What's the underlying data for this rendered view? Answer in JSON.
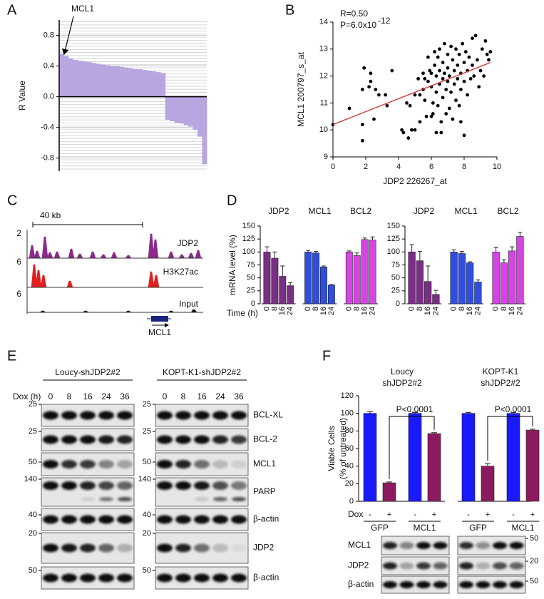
{
  "panel_labels": [
    "A",
    "B",
    "C",
    "D",
    "E",
    "F"
  ],
  "chart_data": [
    {
      "type": "waterfall",
      "y_label": "R Value",
      "annotation": "MCL1",
      "color": "#b7a6e0",
      "grid": true,
      "values": [
        0.56,
        0.53,
        0.5,
        0.48,
        0.47,
        0.46,
        0.45,
        0.44,
        0.43,
        0.42,
        0.41,
        0.4,
        0.4,
        0.39,
        0.38,
        0.37,
        0.36,
        0.36,
        0.35,
        0.34,
        0.33,
        0.32,
        0.31,
        -0.3,
        -0.32,
        -0.34,
        -0.35,
        -0.37,
        -0.39,
        -0.43,
        -0.52,
        -0.88
      ],
      "ylim": [
        -0.97,
        1.0
      ],
      "yticks": [
        0.8,
        0.4,
        {
          "value": 0,
          "label": "0.0"
        },
        -0.4,
        -0.8
      ]
    },
    {
      "type": "scatter",
      "x_label": "JDP2 226267_at",
      "y_label": "MCL1 200797_s_at",
      "annotations": [
        "R=0.50",
        "P=6.0x10",
        "-12"
      ],
      "color": "#000000",
      "x": [
        0,
        1.8,
        1.8,
        1.8,
        1.9,
        2.2,
        2.3,
        2.3,
        2.5,
        2.6,
        2.8,
        3.2,
        3.6,
        3.3,
        1.0,
        4.2,
        4.3,
        4.6,
        4.5,
        4.7,
        4.8,
        5.0,
        5.3,
        5.0,
        5.2,
        5.3,
        5.5,
        5.5,
        5.6,
        5.7,
        5.8,
        5.9,
        5.8,
        6.0,
        6.0,
        6.1,
        6.1,
        6.2,
        6.2,
        6.3,
        6.3,
        6.4,
        6.4,
        6.5,
        6.5,
        6.5,
        6.6,
        6.6,
        6.7,
        6.7,
        6.7,
        6.8,
        6.8,
        6.9,
        6.9,
        7.0,
        7.0,
        7.0,
        7.1,
        7.1,
        7.2,
        7.2,
        7.3,
        7.3,
        7.4,
        7.4,
        7.5,
        7.5,
        7.6,
        7.6,
        7.7,
        7.7,
        7.8,
        7.8,
        7.9,
        8.0,
        8.0,
        8.1,
        8.2,
        8.2,
        8.3,
        8.4,
        8.5,
        8.5,
        8.6,
        8.7,
        8.8,
        8.9,
        9.0,
        9.1,
        9.2,
        9.3,
        9.4,
        9.6,
        9.5,
        8.0,
        7.8,
        6.3,
        6.0,
        5.6
      ],
      "values": [
        10.2,
        9.6,
        10.2,
        11.5,
        12.3,
        11.6,
        11.8,
        12.1,
        10.4,
        11.5,
        11.3,
        11.3,
        12.2,
        10.9,
        10.8,
        10.0,
        9.9,
        9.7,
        11.0,
        10.9,
        10.0,
        10.0,
        10.3,
        11.3,
        11.9,
        11.3,
        12.1,
        11.5,
        11.1,
        10.5,
        12.7,
        12.2,
        11.8,
        12.1,
        11.6,
        11.0,
        10.6,
        12.9,
        12.4,
        12.0,
        11.4,
        12.7,
        10.9,
        13.0,
        12.2,
        11.7,
        10.3,
        9.9,
        12.5,
        11.9,
        11.2,
        13.2,
        12.1,
        10.6,
        11.5,
        12.8,
        12.3,
        11.8,
        10.8,
        12.0,
        13.1,
        11.4,
        12.6,
        10.4,
        12.2,
        11.7,
        13.0,
        11.1,
        12.4,
        11.9,
        12.8,
        10.9,
        12.1,
        11.5,
        13.2,
        12.5,
        11.8,
        12.9,
        12.2,
        11.3,
        12.7,
        11.9,
        13.4,
        12.4,
        12.0,
        13.5,
        12.6,
        11.6,
        12.2,
        13.0,
        12.0,
        13.3,
        12.8,
        12.9,
        12.6,
        9.8,
        10.3,
        9.9,
        10.5,
        11.9
      ],
      "fit": {
        "x": [
          0,
          9.6
        ],
        "values": [
          10.2,
          12.5
        ],
        "color": "#d33b3b"
      },
      "xlim": [
        0,
        10
      ],
      "ylim": [
        9,
        14
      ],
      "xticks": [
        0,
        2,
        4,
        6,
        8,
        10
      ],
      "yticks": [
        9,
        10,
        11,
        12,
        13,
        14
      ]
    },
    {
      "type": "grouped_bar",
      "y_label": "mRNA level (%)",
      "x_label": "Time (h)",
      "categories": [
        "0",
        "8",
        "16",
        "24"
      ],
      "series": [
        {
          "name": "JDP2",
          "color": "#7a2e86",
          "values": [
            100,
            88,
            53,
            35
          ],
          "errors": [
            10,
            12,
            20,
            6
          ]
        },
        {
          "name": "MCL1",
          "color": "#2f4ee0",
          "values": [
            100,
            98,
            71,
            36
          ],
          "errors": [
            3,
            3,
            2,
            1
          ]
        },
        {
          "name": "BCL2",
          "color": "#d644e6",
          "values": [
            100,
            93,
            124,
            123
          ],
          "errors": [
            2,
            5,
            3,
            6
          ]
        }
      ],
      "ylim": [
        0,
        150
      ],
      "yticks": [
        0,
        25,
        50,
        75,
        100,
        125,
        150
      ]
    },
    {
      "type": "grouped_bar",
      "categories": [
        "0",
        "8",
        "16",
        "24"
      ],
      "series": [
        {
          "name": "JDP2",
          "color": "#7a2e86",
          "values": [
            100,
            83,
            43,
            18
          ],
          "errors": [
            14,
            18,
            30,
            8
          ]
        },
        {
          "name": "MCL1",
          "color": "#2f4ee0",
          "values": [
            100,
            97,
            79,
            42
          ],
          "errors": [
            4,
            4,
            2,
            4
          ]
        },
        {
          "name": "BCL2",
          "color": "#d644e6",
          "values": [
            100,
            79,
            102,
            130
          ],
          "errors": [
            8,
            6,
            8,
            8
          ]
        }
      ],
      "ylim": [
        0,
        150
      ],
      "yticks": [
        0,
        25,
        50,
        75,
        100,
        125,
        150
      ]
    },
    {
      "type": "bar",
      "y_label": [
        "Viable Cells",
        "(% of untreated)"
      ],
      "row_label": "Dox",
      "categories": [
        "-",
        "+",
        "-",
        "+",
        "-",
        "+",
        "-",
        "+"
      ],
      "values": [
        100,
        21,
        100,
        77,
        100,
        40,
        100,
        81
      ],
      "errors": [
        2,
        1,
        1,
        1,
        1,
        3,
        1,
        1
      ],
      "colors": [
        "#1a1aff",
        "#8b1a5e"
      ],
      "constructs": [
        "GFP",
        "MCL1",
        "GFP",
        "MCL1"
      ],
      "groups": [
        [
          "Loucy",
          "shJDP2#2"
        ],
        [
          "KOPT-K1",
          "shJDP2#2"
        ]
      ],
      "annotations": [
        "P<0.0001",
        "P<0.0001"
      ],
      "ylim": [
        0,
        120
      ],
      "yticks": [
        0,
        20,
        40,
        60,
        80,
        100,
        120
      ]
    }
  ],
  "tracks_C": {
    "scale_label": "40 kb",
    "gene": "MCL1",
    "tracks": [
      {
        "name": "JDP2",
        "max": 2,
        "color": "#8b2a8b"
      },
      {
        "name": "H3K27ac",
        "max": 6,
        "color": "#e0201e"
      },
      {
        "name": "Input",
        "max": 6,
        "color": "#111111"
      }
    ]
  },
  "blots_E": {
    "time_label": "Dox (h)",
    "lanes": [
      "0",
      "8",
      "16",
      "24",
      "36"
    ],
    "rows": [
      "BCL-XL",
      "BCL-2",
      "MCL1",
      "PARP",
      "β-actin",
      "JDP2",
      "β-actin"
    ],
    "groups": [
      {
        "title": "Loucy-shJDP2#2",
        "markers": [
          25,
          25,
          50,
          140,
          40,
          20,
          50
        ]
      },
      {
        "title": "KOPT-K1-shJDP2#2",
        "markers": [
          25,
          25,
          50,
          140,
          40,
          20,
          50
        ]
      }
    ]
  },
  "blots_F": {
    "rows": [
      "MCL1",
      "JDP2",
      "β-actin"
    ],
    "markers": [
      50,
      20,
      50
    ]
  }
}
